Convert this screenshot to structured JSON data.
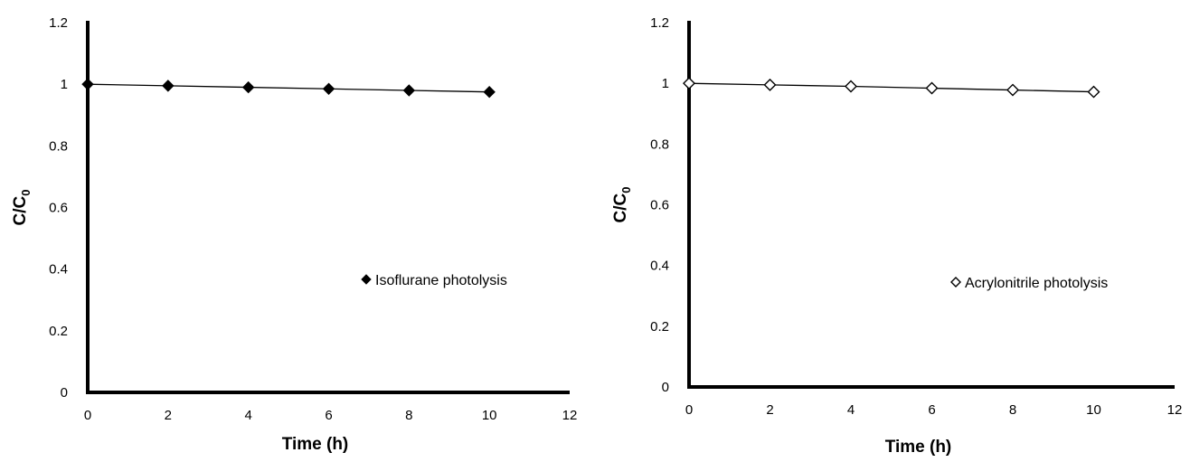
{
  "chart_data": [
    {
      "type": "line",
      "x": [
        0,
        2,
        4,
        6,
        8,
        10
      ],
      "series": [
        {
          "name": "Isoflurane photolysis",
          "values": [
            1.0,
            0.995,
            0.99,
            0.985,
            0.98,
            0.975
          ],
          "marker": "filled-diamond",
          "color": "#000000"
        }
      ],
      "xlabel": "Time (h)",
      "ylabel": {
        "main": "C/C",
        "sub": "0"
      },
      "xlim": [
        0,
        12
      ],
      "ylim": [
        0,
        1.2
      ],
      "xticks": [
        "0",
        "2",
        "4",
        "6",
        "8",
        "10",
        "12"
      ],
      "yticks": [
        "0",
        "0.2",
        "0.4",
        "0.6",
        "0.8",
        "1",
        "1.2"
      ],
      "grid": false,
      "legend": "center-right"
    },
    {
      "type": "line",
      "x": [
        0,
        2,
        4,
        6,
        8,
        10
      ],
      "series": [
        {
          "name": "Acrylonitrile photolysis",
          "values": [
            1.0,
            0.995,
            0.99,
            0.984,
            0.978,
            0.972
          ],
          "marker": "open-diamond",
          "color": "#000000"
        }
      ],
      "xlabel": "Time (h)",
      "ylabel": {
        "main": "C/C",
        "sub": "0"
      },
      "xlim": [
        0,
        12
      ],
      "ylim": [
        0,
        1.2
      ],
      "xticks": [
        "0",
        "2",
        "4",
        "6",
        "8",
        "10",
        "12"
      ],
      "yticks": [
        "0",
        "0.2",
        "0.4",
        "0.6",
        "0.8",
        "1",
        "1.2"
      ],
      "grid": false,
      "legend": "center-right"
    }
  ]
}
